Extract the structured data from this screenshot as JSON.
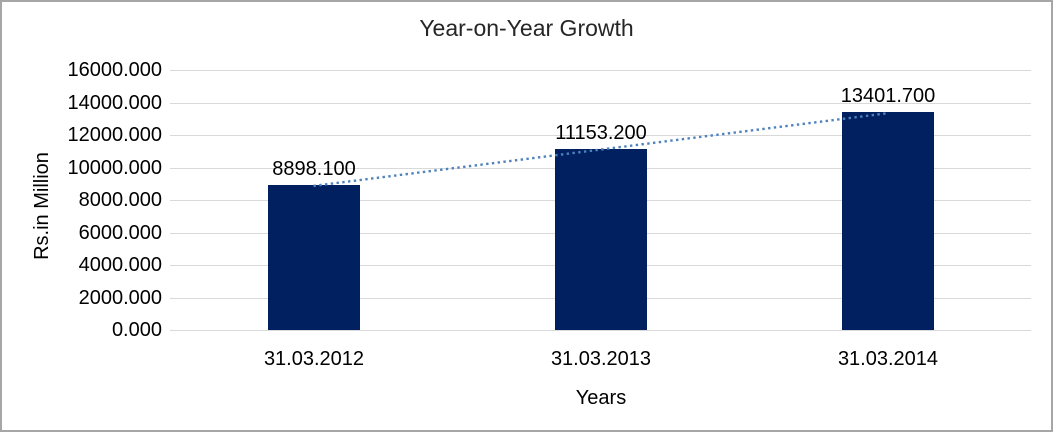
{
  "chart_data": {
    "type": "bar",
    "title": "Year-on-Year Growth",
    "xlabel": "Years",
    "ylabel": "Rs.in Million",
    "categories": [
      "31.03.2012",
      "31.03.2013",
      "31.03.2014"
    ],
    "values": [
      8898.1,
      11153.2,
      13401.7
    ],
    "data_labels": [
      "8898.100",
      "11153.200",
      "13401.700"
    ],
    "ylim": [
      0,
      16000
    ],
    "ytick_step": 2000,
    "ytick_labels": [
      "0.000",
      "2000.000",
      "4000.000",
      "6000.000",
      "8000.000",
      "10000.000",
      "12000.000",
      "14000.000",
      "16000.000"
    ],
    "grid": true,
    "legend": "none",
    "trendline": {
      "type": "linear",
      "style": "dotted",
      "from_category": "31.03.2012",
      "to_category": "31.03.2014"
    },
    "colors": {
      "bar": "#002060",
      "trendline": "#4f81bd",
      "gridline": "#d9d9d9",
      "axis_line": "#d9d9d9",
      "text": "#000000",
      "title_text": "#262626",
      "frame_border": "#a6a6a6",
      "background": "#ffffff"
    }
  }
}
